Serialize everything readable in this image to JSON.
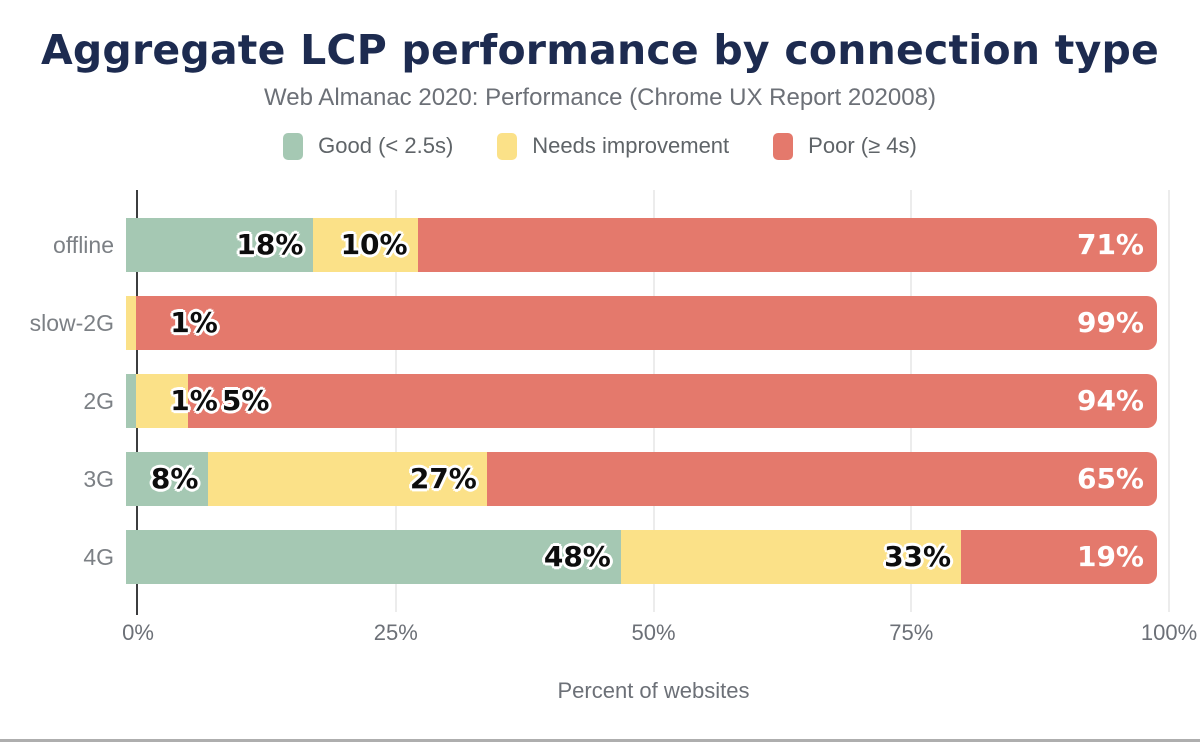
{
  "header": {
    "title": "Aggregate LCP performance by connection type",
    "subtitle": "Web Almanac 2020: Performance (Chrome UX Report 202008)"
  },
  "legend": [
    {
      "label": "Good (< 2.5s)",
      "color": "#a5c8b3"
    },
    {
      "label": "Needs improvement",
      "color": "#fbe188"
    },
    {
      "label": "Poor (≥ 4s)",
      "color": "#e4796c"
    }
  ],
  "chart_data": {
    "type": "bar",
    "stacked": true,
    "orientation": "horizontal",
    "title": "Aggregate LCP performance by connection type",
    "subtitle": "Web Almanac 2020: Performance (Chrome UX Report 202008)",
    "categories": [
      "offline",
      "slow-2G",
      "2G",
      "3G",
      "4G"
    ],
    "series": [
      {
        "name": "Good (< 2.5s)",
        "color": "#a5c8b3",
        "values": [
          18,
          0,
          1,
          8,
          48
        ]
      },
      {
        "name": "Needs improvement",
        "color": "#fbe188",
        "values": [
          10,
          1,
          5,
          27,
          33
        ]
      },
      {
        "name": "Poor (≥ 4s)",
        "color": "#e4796c",
        "values": [
          71,
          99,
          94,
          65,
          19
        ]
      }
    ],
    "value_suffix": "%",
    "xlabel": "Percent of websites",
    "x_ticks": [
      "0%",
      "25%",
      "50%",
      "75%",
      "100%"
    ],
    "xlim": [
      0,
      100
    ],
    "grid": "vertical",
    "legend_position": "top"
  },
  "colors": {
    "title_text": "#1d2b50",
    "muted_text": "#6c7077",
    "category_text": "#7c8085",
    "axis_line": "#3c3d3f",
    "gridline": "#ececec"
  }
}
